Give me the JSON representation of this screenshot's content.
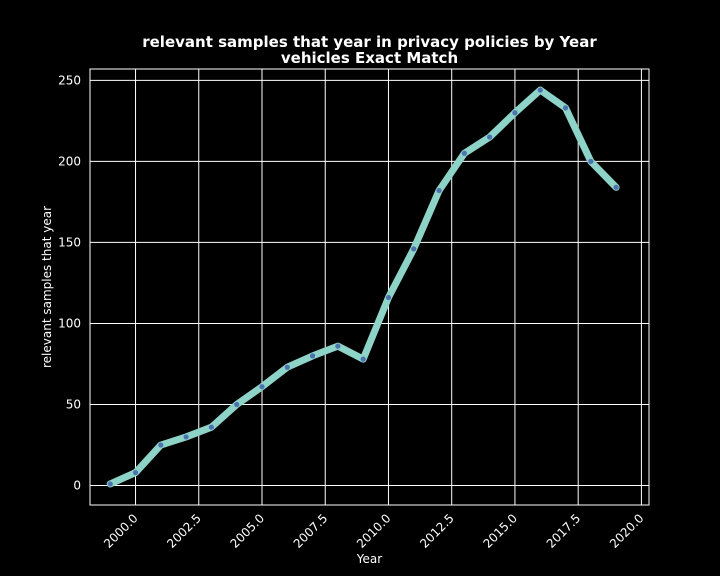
{
  "chart_data": {
    "type": "line",
    "title": "relevant samples that year in privacy policies by Year",
    "subtitle": "vehicles Exact Match",
    "xlabel": "Year",
    "ylabel": "relevant samples that year",
    "xlim": [
      1998.2,
      2020.3
    ],
    "ylim": [
      -12,
      257
    ],
    "xticks": [
      "2000.0",
      "2002.5",
      "2005.0",
      "2007.5",
      "2010.0",
      "2012.5",
      "2015.0",
      "2017.5",
      "2020.0"
    ],
    "yticks": [
      "0",
      "50",
      "100",
      "150",
      "200",
      "250"
    ],
    "grid": true,
    "colors": {
      "background": "#000000",
      "line": "#8dd3c7",
      "marker": "#4c72b0",
      "grid": "#ffffff"
    },
    "series": [
      {
        "x": [
          1999,
          2000,
          2001,
          2002,
          2003,
          2004,
          2005,
          2006,
          2007,
          2008,
          2009,
          2010,
          2011,
          2012,
          2013,
          2014,
          2015,
          2016,
          2017,
          2018,
          2019
        ],
        "values": [
          1,
          8,
          25,
          30,
          36,
          50,
          61,
          73,
          80,
          86,
          78,
          116,
          146,
          182,
          205,
          215,
          230,
          244,
          233,
          200,
          184
        ]
      }
    ]
  }
}
